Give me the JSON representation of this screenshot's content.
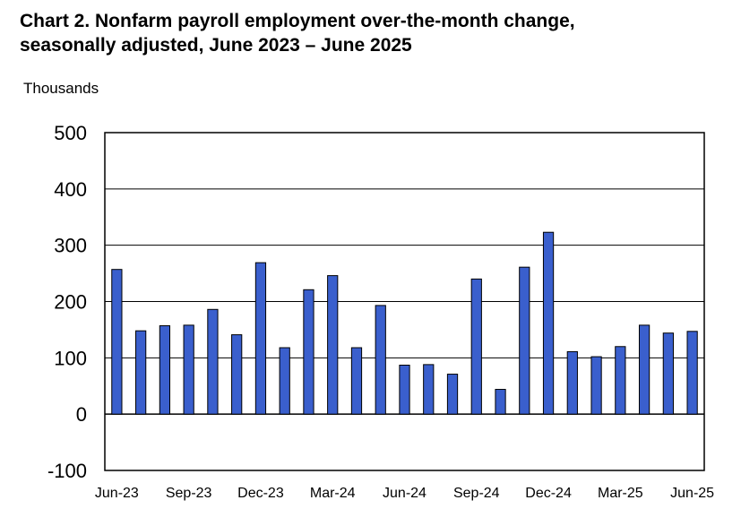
{
  "chart_data": {
    "type": "bar",
    "title_line1": "Chart 2. Nonfarm payroll employment over-the-month change,",
    "title_line2": "seasonally adjusted, June 2023 – June 2025",
    "ylabel": "Thousands",
    "xlabel": "",
    "ylim": [
      -100,
      500
    ],
    "yticks": [
      -100,
      0,
      100,
      200,
      300,
      400,
      500
    ],
    "grid": true,
    "legend": "none",
    "bar_color": "#3a5fcd",
    "categories": [
      "Jun-23",
      "Jul-23",
      "Aug-23",
      "Sep-23",
      "Oct-23",
      "Nov-23",
      "Dec-23",
      "Jan-24",
      "Feb-24",
      "Mar-24",
      "Apr-24",
      "May-24",
      "Jun-24",
      "Jul-24",
      "Aug-24",
      "Sep-24",
      "Oct-24",
      "Nov-24",
      "Dec-24",
      "Jan-25",
      "Feb-25",
      "Mar-25",
      "Apr-25",
      "May-25",
      "Jun-25"
    ],
    "x_tick_labels": [
      "Jun-23",
      "Sep-23",
      "Dec-23",
      "Mar-24",
      "Jun-24",
      "Sep-24",
      "Dec-24",
      "Mar-25",
      "Jun-25"
    ],
    "values": [
      257,
      148,
      157,
      158,
      186,
      141,
      269,
      118,
      221,
      246,
      118,
      193,
      87,
      88,
      71,
      240,
      44,
      261,
      323,
      111,
      102,
      120,
      158,
      144,
      147
    ]
  }
}
